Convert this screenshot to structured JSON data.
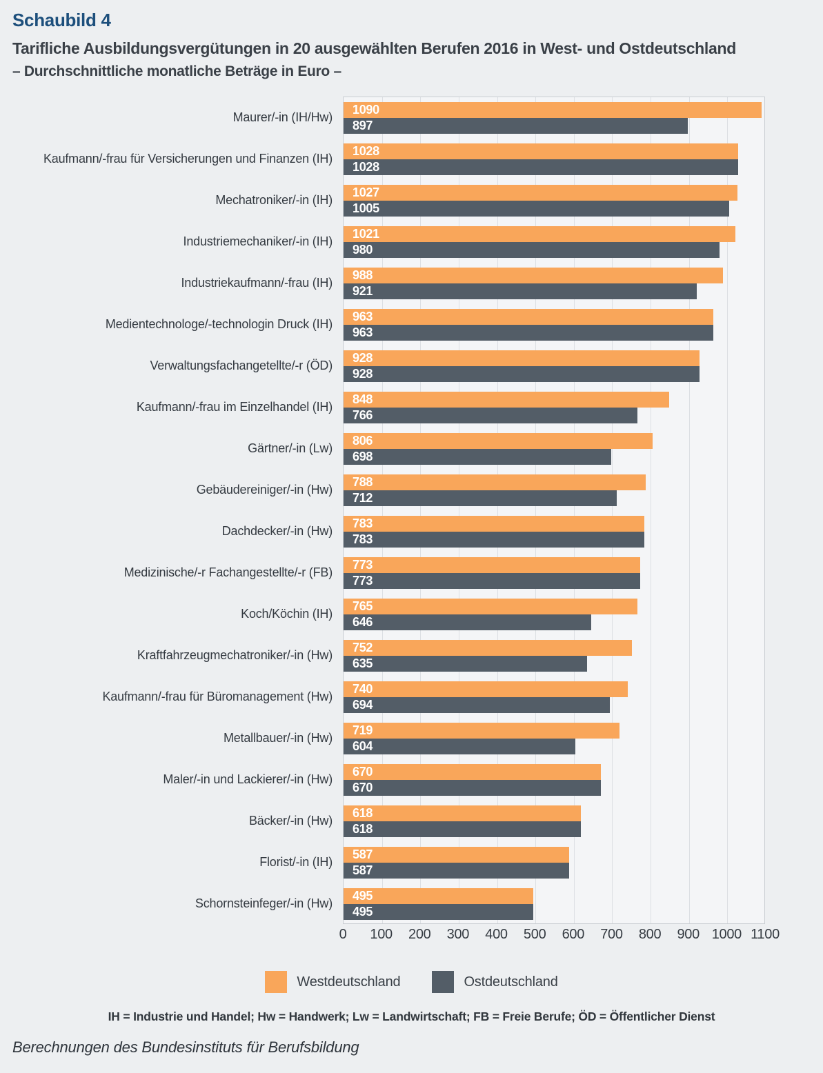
{
  "title": "Schaubild 4",
  "heading": "Tarifliche Ausbildungsvergütungen in 20 ausgewählten Berufen 2016 in West- und Ostdeutschland",
  "subheading": "– Durchschnittliche monatliche Beträge in Euro –",
  "footnote": "IH = Industrie und Handel; Hw = Handwerk; Lw = Landwirtschaft; FB = Freie Berufe; ÖD = Öffentlicher Dienst",
  "source": "Berechnungen des Bundesinstituts für Berufsbildung",
  "colors": {
    "page_background": "#edeff1",
    "plot_background": "#f4f5f7",
    "plot_border": "#c9cdd2",
    "gridline": "#dcdfe3",
    "west_bar": "#f9a65a",
    "east_bar": "#535d67",
    "title_blue": "#1d4f7c",
    "text": "#3a4047",
    "bar_value_text": "#ffffff"
  },
  "chart_data": {
    "type": "bar",
    "orientation": "horizontal",
    "title": "Tarifliche Ausbildungsvergütungen in 20 ausgewählten Berufen 2016 in West- und Ostdeutschland",
    "subtitle": "– Durchschnittliche monatliche Beträge in Euro –",
    "xlabel": "",
    "ylabel": "",
    "xlim": [
      0,
      1100
    ],
    "xticks": [
      0,
      100,
      200,
      300,
      400,
      500,
      600,
      700,
      800,
      900,
      1000,
      1100
    ],
    "grid": true,
    "legend_position": "bottom",
    "value_labels": "inside-left",
    "categories": [
      "Maurer/-in (IH/Hw)",
      "Kaufmann/-frau für Versicherungen und Finanzen (IH)",
      "Mechatroniker/-in (IH)",
      "Industriemechaniker/-in (IH)",
      "Industriekaufmann/-frau (IH)",
      "Medientechnologe/-technologin Druck (IH)",
      "Verwaltungsfachangetellte/-r (ÖD)",
      "Kaufmann/-frau im Einzelhandel (IH)",
      "Gärtner/-in (Lw)",
      "Gebäudereiniger/-in (Hw)",
      "Dachdecker/-in (Hw)",
      "Medizinische/-r Fachangestellte/-r (FB)",
      "Koch/Köchin (IH)",
      "Kraftfahrzeugmechatroniker/-in (Hw)",
      "Kaufmann/-frau für Büromanagement (Hw)",
      "Metallbauer/-in (Hw)",
      "Maler/-in und Lackierer/-in (Hw)",
      "Bäcker/-in (Hw)",
      "Florist/-in (IH)",
      "Schornsteinfeger/-in (Hw)"
    ],
    "series": [
      {
        "name": "Westdeutschland",
        "color": "#f9a65a",
        "values": [
          1090,
          1028,
          1027,
          1021,
          988,
          963,
          928,
          848,
          806,
          788,
          783,
          773,
          765,
          752,
          740,
          719,
          670,
          618,
          587,
          495
        ]
      },
      {
        "name": "Ostdeutschland",
        "color": "#535d67",
        "values": [
          897,
          1028,
          1005,
          980,
          921,
          963,
          928,
          766,
          698,
          712,
          783,
          773,
          646,
          635,
          694,
          604,
          670,
          618,
          587,
          495
        ]
      }
    ]
  }
}
